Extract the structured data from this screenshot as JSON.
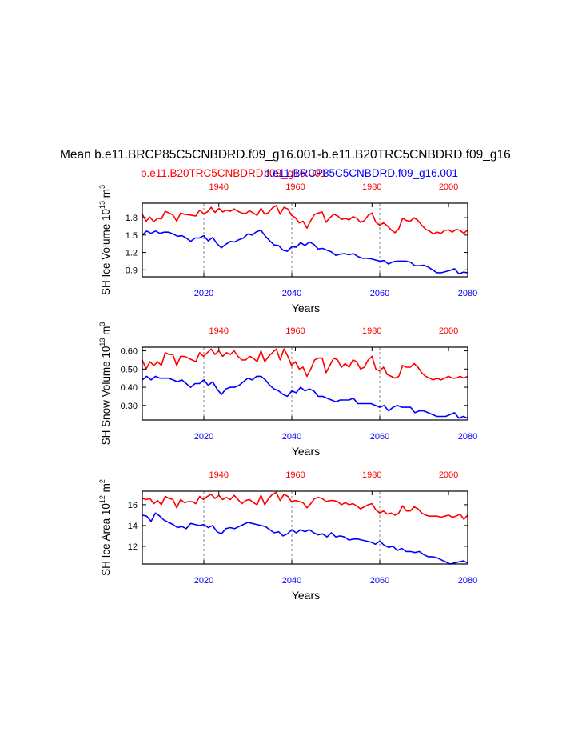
{
  "title": "Mean b.e11.BRCP85C5CNBDRD.f09_g16.001-b.e11.B20TRC5CNBDRD.f09_g16",
  "legend": {
    "historical_label": "b.e11.B20TRC5CNBDRD.f09_g16.001",
    "future_label": "b.e11.BRCP85C5CNBDRD.f09_g16.001"
  },
  "colors": {
    "historical": "#ff0000",
    "future": "#0000ff",
    "axis": "#000000",
    "gridline": "#808080"
  },
  "chart_data": [
    {
      "type": "line",
      "id": "ice-volume",
      "ylabel": "SH Ice Volume 10",
      "ylabel_exp": "13",
      "ylabel_unit": "m",
      "ylabel_unit_exp": "3",
      "xlabel": "Years",
      "ylim": [
        0.78,
        2.05
      ],
      "yticks": [
        "0.9",
        "1.2",
        "1.5",
        "1.8"
      ],
      "bottom_axis": {
        "xlim": [
          2006,
          2080
        ],
        "ticks": [
          "2020",
          "2040",
          "2060",
          "2080"
        ]
      },
      "top_axis": {
        "xlim": [
          1920,
          2005
        ],
        "ticks": [
          "1940",
          "1960",
          "1980",
          "2000"
        ]
      },
      "dashed_x": [
        2020,
        2040,
        2060
      ],
      "series": [
        {
          "name": "b.e11.B20TRC5CNBDRD.f09_g16.001",
          "axis": "top",
          "x_start": 1920,
          "values": [
            1.86,
            1.74,
            1.81,
            1.73,
            1.79,
            1.78,
            1.91,
            1.88,
            1.85,
            1.74,
            1.88,
            1.86,
            1.85,
            1.84,
            1.83,
            1.93,
            1.87,
            1.9,
            1.98,
            1.89,
            1.96,
            1.9,
            1.93,
            1.91,
            1.95,
            1.91,
            1.88,
            1.87,
            1.92,
            1.88,
            1.84,
            1.96,
            1.86,
            1.89,
            1.97,
            2.01,
            1.86,
            1.98,
            1.95,
            1.84,
            1.8,
            1.71,
            1.74,
            1.62,
            1.75,
            1.86,
            1.88,
            1.9,
            1.72,
            1.8,
            1.86,
            1.83,
            1.77,
            1.79,
            1.76,
            1.82,
            1.79,
            1.72,
            1.75,
            1.84,
            1.88,
            1.72,
            1.67,
            1.71,
            1.66,
            1.59,
            1.54,
            1.61,
            1.79,
            1.75,
            1.74,
            1.8,
            1.75,
            1.67,
            1.6,
            1.57,
            1.52,
            1.55,
            1.53,
            1.58,
            1.59,
            1.55,
            1.6,
            1.58,
            1.53,
            1.59
          ]
        },
        {
          "name": "b.e11.BRCP85C5CNBDRD.f09_g16.001",
          "axis": "bottom",
          "x_start": 2006,
          "values": [
            1.5,
            1.57,
            1.53,
            1.57,
            1.53,
            1.55,
            1.55,
            1.52,
            1.48,
            1.49,
            1.45,
            1.39,
            1.45,
            1.45,
            1.49,
            1.4,
            1.46,
            1.35,
            1.28,
            1.34,
            1.39,
            1.38,
            1.42,
            1.45,
            1.52,
            1.5,
            1.56,
            1.58,
            1.48,
            1.4,
            1.33,
            1.32,
            1.24,
            1.22,
            1.3,
            1.29,
            1.37,
            1.32,
            1.38,
            1.34,
            1.26,
            1.27,
            1.24,
            1.21,
            1.15,
            1.17,
            1.18,
            1.16,
            1.18,
            1.13,
            1.1,
            1.1,
            1.09,
            1.07,
            1.05,
            1.06,
            1.0,
            1.04,
            1.05,
            1.05,
            1.05,
            1.03,
            0.97,
            0.97,
            0.98,
            0.95,
            0.9,
            0.85,
            0.85,
            0.87,
            0.89,
            0.92,
            0.83,
            0.86,
            0.85
          ]
        }
      ]
    },
    {
      "type": "line",
      "id": "snow-volume",
      "ylabel": "SH Snow Volume 10",
      "ylabel_exp": "13",
      "ylabel_unit": "m",
      "ylabel_unit_exp": "3",
      "xlabel": "Years",
      "ylim": [
        0.22,
        0.62
      ],
      "yticks": [
        "0.30",
        "0.40",
        "0.50",
        "0.60"
      ],
      "bottom_axis": {
        "xlim": [
          2006,
          2080
        ],
        "ticks": [
          "2020",
          "2040",
          "2060",
          "2080"
        ]
      },
      "top_axis": {
        "xlim": [
          1920,
          2005
        ],
        "ticks": [
          "1940",
          "1960",
          "1980",
          "2000"
        ]
      },
      "dashed_x": [
        2020,
        2040,
        2060
      ],
      "series": [
        {
          "name": "b.e11.B20TRC5CNBDRD.f09_g16.001",
          "axis": "top",
          "x_start": 1920,
          "values": [
            0.55,
            0.5,
            0.54,
            0.52,
            0.54,
            0.52,
            0.59,
            0.58,
            0.58,
            0.52,
            0.57,
            0.57,
            0.56,
            0.55,
            0.54,
            0.59,
            0.57,
            0.59,
            0.61,
            0.58,
            0.6,
            0.57,
            0.59,
            0.58,
            0.6,
            0.57,
            0.55,
            0.55,
            0.57,
            0.56,
            0.54,
            0.6,
            0.54,
            0.57,
            0.59,
            0.61,
            0.55,
            0.61,
            0.57,
            0.52,
            0.54,
            0.5,
            0.51,
            0.46,
            0.5,
            0.55,
            0.56,
            0.56,
            0.48,
            0.52,
            0.56,
            0.55,
            0.51,
            0.53,
            0.51,
            0.55,
            0.54,
            0.5,
            0.51,
            0.55,
            0.57,
            0.5,
            0.49,
            0.51,
            0.47,
            0.46,
            0.45,
            0.46,
            0.52,
            0.51,
            0.51,
            0.53,
            0.51,
            0.48,
            0.46,
            0.45,
            0.44,
            0.45,
            0.44,
            0.45,
            0.46,
            0.45,
            0.45,
            0.46,
            0.45,
            0.46
          ]
        },
        {
          "name": "b.e11.BRCP85C5CNBDRD.f09_g16.001",
          "axis": "bottom",
          "x_start": 2006,
          "values": [
            0.44,
            0.46,
            0.44,
            0.46,
            0.45,
            0.45,
            0.45,
            0.44,
            0.43,
            0.44,
            0.42,
            0.4,
            0.42,
            0.42,
            0.44,
            0.41,
            0.43,
            0.39,
            0.36,
            0.39,
            0.4,
            0.4,
            0.41,
            0.43,
            0.45,
            0.44,
            0.46,
            0.46,
            0.44,
            0.41,
            0.39,
            0.38,
            0.36,
            0.35,
            0.38,
            0.37,
            0.4,
            0.38,
            0.39,
            0.38,
            0.35,
            0.35,
            0.34,
            0.33,
            0.32,
            0.33,
            0.33,
            0.33,
            0.34,
            0.31,
            0.31,
            0.31,
            0.31,
            0.3,
            0.29,
            0.3,
            0.27,
            0.29,
            0.3,
            0.29,
            0.29,
            0.29,
            0.26,
            0.27,
            0.27,
            0.26,
            0.25,
            0.24,
            0.24,
            0.24,
            0.25,
            0.26,
            0.23,
            0.24,
            0.23
          ]
        }
      ]
    },
    {
      "type": "line",
      "id": "ice-area",
      "ylabel": "SH Ice Area 10",
      "ylabel_exp": "12",
      "ylabel_unit": "m",
      "ylabel_unit_exp": "2",
      "xlabel": "Years",
      "ylim": [
        10.3,
        17.3
      ],
      "yticks": [
        "12",
        "14",
        "16"
      ],
      "bottom_axis": {
        "xlim": [
          2006,
          2080
        ],
        "ticks": [
          "2020",
          "2040",
          "2060",
          "2080"
        ]
      },
      "top_axis": {
        "xlim": [
          1920,
          2005
        ],
        "ticks": [
          "1940",
          "1960",
          "1980",
          "2000"
        ]
      },
      "dashed_x": [
        2020,
        2040,
        2060
      ],
      "series": [
        {
          "name": "b.e11.B20TRC5CNBDRD.f09_g16.001",
          "axis": "top",
          "x_start": 1920,
          "values": [
            16.6,
            16.5,
            16.6,
            16.1,
            16.4,
            16.0,
            16.8,
            16.6,
            16.5,
            15.7,
            16.5,
            16.2,
            16.3,
            16.3,
            16.1,
            16.8,
            16.5,
            16.8,
            17.0,
            16.6,
            16.9,
            16.5,
            16.7,
            16.5,
            16.9,
            16.5,
            16.1,
            16.4,
            16.5,
            16.2,
            16.0,
            16.9,
            16.0,
            16.6,
            17.0,
            17.2,
            16.4,
            17.0,
            16.8,
            16.3,
            16.4,
            16.3,
            16.2,
            15.7,
            16.1,
            16.6,
            16.7,
            16.6,
            16.3,
            16.4,
            16.4,
            16.3,
            16.0,
            16.2,
            16.0,
            16.1,
            15.9,
            15.6,
            15.8,
            16.0,
            16.1,
            15.5,
            15.2,
            15.4,
            15.1,
            15.2,
            15.0,
            15.2,
            15.9,
            15.4,
            15.4,
            15.8,
            15.6,
            15.2,
            15.0,
            14.9,
            14.9,
            14.9,
            14.8,
            14.9,
            15.0,
            14.8,
            14.9,
            15.1,
            14.6,
            15.0
          ]
        },
        {
          "name": "b.e11.BRCP85C5CNBDRD.f09_g16.001",
          "axis": "bottom",
          "x_start": 2006,
          "values": [
            15.0,
            14.9,
            14.4,
            15.2,
            14.9,
            14.5,
            14.3,
            14.1,
            13.8,
            13.9,
            13.7,
            14.2,
            14.1,
            14.0,
            14.1,
            13.8,
            14.0,
            13.4,
            13.2,
            13.7,
            13.8,
            13.7,
            13.9,
            14.1,
            14.3,
            14.2,
            14.1,
            14.0,
            13.9,
            13.6,
            13.3,
            13.4,
            13.0,
            13.2,
            13.6,
            13.3,
            13.6,
            13.4,
            13.6,
            13.3,
            13.1,
            13.2,
            12.9,
            13.3,
            12.9,
            13.0,
            12.9,
            12.6,
            12.7,
            12.7,
            12.6,
            12.5,
            12.4,
            12.2,
            12.5,
            12.1,
            11.9,
            12.0,
            11.6,
            11.8,
            11.5,
            11.5,
            11.4,
            11.5,
            11.2,
            11.0,
            11.0,
            10.9,
            10.7,
            10.5,
            10.3,
            10.4,
            10.5,
            10.6,
            10.4
          ]
        }
      ]
    }
  ]
}
